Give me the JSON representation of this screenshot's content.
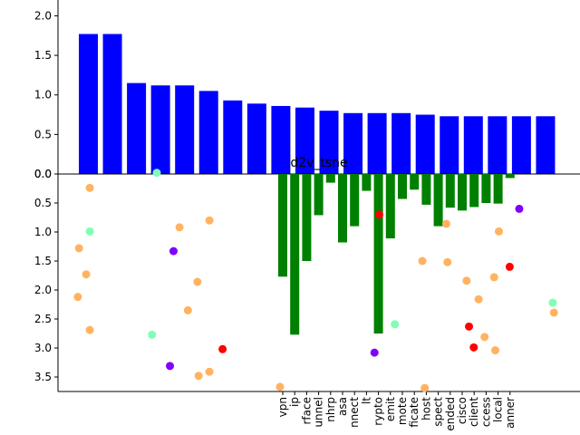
{
  "chart_data": [
    {
      "type": "bar",
      "ylim": [
        0,
        2.2
      ],
      "yticks": [
        0.0,
        0.5,
        1.0,
        1.5,
        2.0
      ],
      "bar_color": "#0000ff",
      "values": [
        1.77,
        1.77,
        1.15,
        1.12,
        1.12,
        1.05,
        0.93,
        0.89,
        0.86,
        0.84,
        0.8,
        0.77,
        0.77,
        0.77,
        0.75,
        0.73,
        0.73,
        0.73,
        0.73,
        0.73
      ]
    },
    {
      "type": "bar",
      "ylim": [
        3.75,
        0.0
      ],
      "yticks": [
        0.0,
        0.5,
        1.0,
        1.5,
        2.0,
        2.5,
        3.0,
        3.5
      ],
      "bar_color": "#008000",
      "categories": [
        "vpn",
        "ip",
        "rface",
        "unnel",
        "nhrp",
        "asa",
        "nnect",
        "lt",
        "rypto",
        "emit",
        "mote",
        "ficate",
        "host",
        "spect",
        "ended",
        "cisco",
        "client",
        "ccess",
        "local",
        "anner"
      ],
      "values": [
        1.77,
        2.77,
        1.5,
        0.71,
        0.15,
        1.18,
        0.9,
        0.29,
        2.75,
        1.11,
        0.43,
        0.27,
        0.53,
        0.9,
        0.58,
        0.63,
        0.57,
        0.5,
        0.51,
        0.07
      ]
    },
    {
      "type": "scatter",
      "title": "d2v_tsne",
      "ylim": [
        3.75,
        0.0
      ],
      "points": [
        {
          "x": 0,
          "y": -0.02,
          "color": "#80ffb4"
        },
        {
          "x": -5.6,
          "y": 0.24,
          "color": "#ffb360"
        },
        {
          "x": -5.6,
          "y": 0.99,
          "color": "#80ffb4"
        },
        {
          "x": -6.5,
          "y": 1.28,
          "color": "#ffb360"
        },
        {
          "x": -5.9,
          "y": 1.73,
          "color": "#ffb360"
        },
        {
          "x": -6.6,
          "y": 2.12,
          "color": "#ffb360"
        },
        {
          "x": -5.6,
          "y": 2.69,
          "color": "#ffb360"
        },
        {
          "x": -0.4,
          "y": 2.77,
          "color": "#80ffb4"
        },
        {
          "x": 1.1,
          "y": 3.31,
          "color": "#8000ff"
        },
        {
          "x": 1.9,
          "y": 0.92,
          "color": "#ffb360"
        },
        {
          "x": 1.4,
          "y": 1.33,
          "color": "#8000ff"
        },
        {
          "x": 3.4,
          "y": 1.86,
          "color": "#ffb360"
        },
        {
          "x": 2.6,
          "y": 2.35,
          "color": "#ffb360"
        },
        {
          "x": 4.4,
          "y": 0.8,
          "color": "#ffb360"
        },
        {
          "x": 5.5,
          "y": 3.02,
          "color": "#ff0000"
        },
        {
          "x": 3.5,
          "y": 3.48,
          "color": "#ffb360"
        },
        {
          "x": 4.4,
          "y": 3.41,
          "color": "#ffb360"
        },
        {
          "x": 10.3,
          "y": 3.67,
          "color": "#ffb360"
        },
        {
          "x": 18.6,
          "y": 0.7,
          "color": "#ff0000"
        },
        {
          "x": 18.2,
          "y": 3.08,
          "color": "#8000ff"
        },
        {
          "x": 19.9,
          "y": 2.59,
          "color": "#80ffb4"
        },
        {
          "x": 22.2,
          "y": 1.5,
          "color": "#ffb360"
        },
        {
          "x": 22.4,
          "y": 3.69,
          "color": "#ffb360"
        },
        {
          "x": 24.2,
          "y": 0.86,
          "color": "#ffb360"
        },
        {
          "x": 24.3,
          "y": 1.52,
          "color": "#ffb360"
        },
        {
          "x": 25.9,
          "y": 1.84,
          "color": "#ffb360"
        },
        {
          "x": 26.9,
          "y": 2.16,
          "color": "#ffb360"
        },
        {
          "x": 26.1,
          "y": 2.63,
          "color": "#ff0000"
        },
        {
          "x": 26.5,
          "y": 2.99,
          "color": "#ff0000"
        },
        {
          "x": 27.4,
          "y": 2.81,
          "color": "#ffb360"
        },
        {
          "x": 28.2,
          "y": 1.78,
          "color": "#ffb360"
        },
        {
          "x": 28.3,
          "y": 3.04,
          "color": "#ffb360"
        },
        {
          "x": 28.6,
          "y": 0.99,
          "color": "#ffb360"
        },
        {
          "x": 29.5,
          "y": 1.6,
          "color": "#ff0000"
        },
        {
          "x": 30.3,
          "y": 0.6,
          "color": "#8000ff"
        },
        {
          "x": 33.1,
          "y": 2.22,
          "color": "#80ffb4"
        },
        {
          "x": 33.2,
          "y": 2.39,
          "color": "#ffb360"
        }
      ]
    }
  ]
}
